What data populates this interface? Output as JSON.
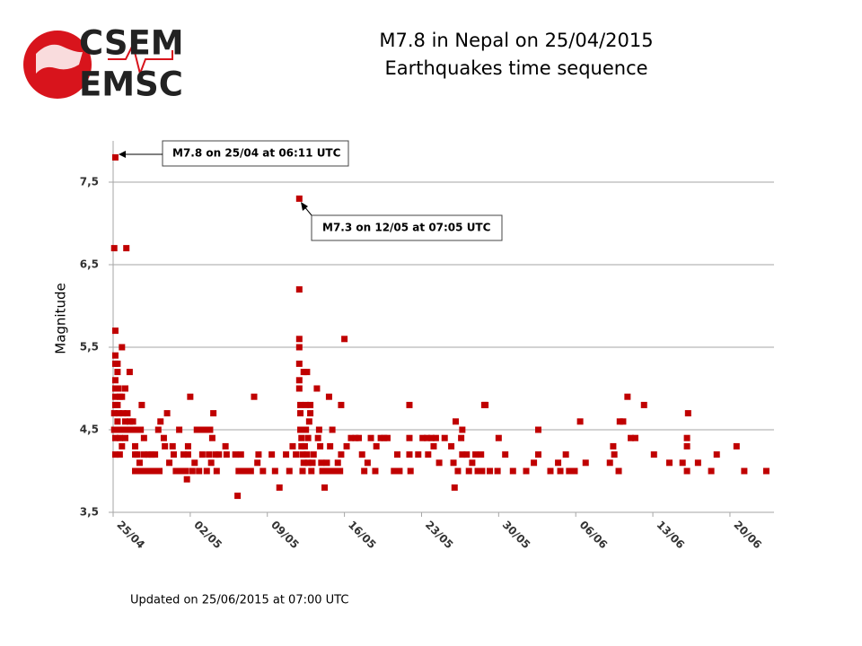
{
  "logo": {
    "line1": "CSEM",
    "line2": "EMSC"
  },
  "chart_data": {
    "type": "scatter",
    "title": "M7.8 in Nepal on 25/04/2015",
    "subtitle": "Earthquakes time sequence",
    "y_label": "Magnitude",
    "footer": "Updated on 25/06/2015  at 07:00 UTC",
    "annotations": [
      "M7.8 on 25/04 at 06:11 UTC",
      "M7.3 on 12/05 at 07:05 UTC"
    ],
    "color": "#c00000",
    "grid": true,
    "xlim": [
      0,
      60
    ],
    "xticks": [
      {
        "value": 0,
        "label": "25/04"
      },
      {
        "value": 7,
        "label": "02/05"
      },
      {
        "value": 14,
        "label": "09/05"
      },
      {
        "value": 21,
        "label": "16/05"
      },
      {
        "value": 28,
        "label": "23/05"
      },
      {
        "value": 35,
        "label": "30/05"
      },
      {
        "value": 42,
        "label": "06/06"
      },
      {
        "value": 49,
        "label": "13/06"
      },
      {
        "value": 56,
        "label": "20/06"
      }
    ],
    "ylim": [
      3.5,
      8
    ],
    "yticks": [
      {
        "value": 3.5,
        "label": "3,5"
      },
      {
        "value": 4.5,
        "label": "4,5"
      },
      {
        "value": 5.5,
        "label": "5,5"
      },
      {
        "value": 6.5,
        "label": "6,5"
      },
      {
        "value": 7.5,
        "label": "7,5"
      }
    ],
    "x": [
      0.2,
      0.1,
      0.2,
      0.2,
      0.2,
      0.2,
      0.2,
      0.2,
      0.2,
      0.1,
      0.1,
      0.2,
      0.2,
      0.4,
      0.4,
      0.5,
      0.6,
      0.4,
      0.5,
      0.4,
      0.6,
      0.6,
      0.8,
      0.6,
      0.8,
      0.8,
      0.9,
      1.1,
      1.2,
      1.1,
      1.1,
      1.1,
      1.3,
      1.5,
      1.5,
      1.5,
      1.8,
      2.0,
      2.0,
      2.0,
      2.0,
      2.2,
      2.4,
      2.4,
      2.5,
      2.6,
      2.8,
      2.8,
      2.9,
      3.2,
      3.3,
      3.5,
      3.6,
      3.8,
      3.9,
      4.1,
      4.2,
      4.3,
      4.6,
      4.7,
      4.9,
      5.1,
      5.4,
      5.5,
      5.7,
      6.0,
      6.1,
      6.4,
      6.6,
      6.7,
      6.8,
      6.8,
      7.0,
      7.2,
      7.4,
      7.6,
      7.8,
      8.1,
      8.1,
      8.4,
      8.5,
      8.7,
      8.8,
      8.9,
      9.0,
      9.1,
      9.3,
      9.4,
      9.6,
      10.2,
      10.3,
      11.1,
      11.3,
      11.4,
      11.6,
      11.8,
      12.3,
      12.5,
      12.8,
      13.1,
      13.2,
      13.6,
      14.4,
      14.7,
      15.1,
      15.7,
      16.0,
      16.3,
      16.6,
      16.9,
      16.9,
      16.9,
      16.9,
      16.9,
      16.9,
      16.9,
      17.0,
      17.0,
      17.0,
      17.1,
      17.1,
      17.2,
      17.3,
      17.2,
      17.3,
      17.6,
      17.5,
      17.9,
      17.9,
      17.8,
      17.5,
      17.7,
      17.4,
      17.6,
      17.7,
      18.0,
      18.1,
      18.2,
      18.5,
      18.6,
      18.7,
      18.8,
      18.9,
      19.0,
      19.2,
      19.4,
      19.4,
      19.6,
      19.7,
      19.9,
      19.9,
      20.2,
      20.4,
      20.6,
      20.7,
      20.7,
      21.0,
      21.2,
      21.6,
      22.0,
      22.3,
      22.6,
      22.8,
      23.1,
      23.4,
      23.8,
      23.9,
      24.3,
      24.6,
      24.9,
      25.5,
      25.8,
      26.0,
      26.9,
      26.9,
      26.9,
      27.0,
      27.7,
      28.1,
      28.5,
      28.6,
      28.9,
      29.1,
      29.3,
      29.6,
      30.1,
      30.7,
      30.9,
      31.0,
      31.1,
      31.3,
      31.6,
      31.7,
      31.7,
      32.1,
      32.3,
      32.6,
      32.9,
      33.1,
      33.4,
      33.5,
      33.7,
      33.8,
      34.2,
      34.9,
      35.0,
      35.6,
      36.3,
      37.5,
      38.2,
      38.6,
      38.6,
      39.7,
      40.4,
      40.6,
      41.1,
      41.4,
      41.9,
      42.4,
      42.9,
      45.1,
      45.4,
      45.5,
      45.9,
      46.0,
      46.3,
      46.7,
      47.0,
      47.4,
      48.2,
      49.1,
      50.5,
      51.7,
      52.2,
      52.1,
      52.1,
      52.1,
      53.1,
      54.3,
      54.8,
      56.6,
      57.3,
      59.3
    ],
    "values": [
      7.8,
      6.7,
      5.7,
      5.4,
      5.3,
      5.1,
      5.0,
      4.9,
      4.8,
      4.7,
      4.5,
      4.4,
      4.2,
      5.3,
      5.2,
      5.0,
      4.9,
      4.8,
      4.7,
      4.6,
      4.5,
      4.4,
      4.3,
      4.2,
      5.5,
      4.9,
      4.7,
      5.0,
      6.7,
      4.6,
      4.5,
      4.4,
      4.7,
      5.2,
      4.6,
      4.5,
      4.6,
      4.5,
      4.3,
      4.2,
      4.0,
      4.2,
      4.0,
      4.1,
      4.5,
      4.8,
      4.4,
      4.2,
      4.0,
      4.2,
      4.0,
      4.2,
      4.0,
      4.2,
      4.0,
      4.5,
      4.0,
      4.6,
      4.4,
      4.3,
      4.7,
      4.1,
      4.3,
      4.2,
      4.0,
      4.5,
      4.0,
      4.2,
      4.0,
      3.9,
      4.3,
      4.2,
      4.9,
      4.0,
      4.1,
      4.5,
      4.0,
      4.5,
      4.2,
      4.5,
      4.0,
      4.2,
      4.5,
      4.1,
      4.4,
      4.7,
      4.2,
      4.0,
      4.2,
      4.3,
      4.2,
      4.2,
      3.7,
      4.0,
      4.2,
      4.0,
      4.0,
      4.0,
      4.9,
      4.1,
      4.2,
      4.0,
      4.2,
      4.0,
      3.8,
      4.2,
      4.0,
      4.3,
      4.2,
      7.3,
      6.2,
      5.6,
      5.5,
      5.3,
      5.1,
      5.0,
      4.8,
      4.7,
      4.5,
      4.4,
      4.3,
      4.2,
      4.1,
      4.0,
      5.2,
      5.2,
      4.8,
      4.8,
      4.7,
      4.6,
      4.5,
      4.4,
      4.3,
      4.2,
      4.1,
      4.0,
      4.1,
      4.2,
      5.0,
      4.4,
      4.5,
      4.3,
      4.1,
      4.0,
      3.8,
      4.0,
      4.1,
      4.9,
      4.3,
      4.0,
      4.5,
      4.0,
      4.1,
      4.0,
      4.8,
      4.2,
      5.6,
      4.3,
      4.4,
      4.4,
      4.4,
      4.2,
      4.0,
      4.1,
      4.4,
      4.0,
      4.3,
      4.4,
      4.4,
      4.4,
      4.0,
      4.2,
      4.0,
      4.8,
      4.4,
      4.2,
      4.0,
      4.2,
      4.4,
      4.4,
      4.2,
      4.4,
      4.3,
      4.4,
      4.1,
      4.4,
      4.3,
      4.1,
      3.8,
      4.6,
      4.0,
      4.4,
      4.5,
      4.2,
      4.2,
      4.0,
      4.1,
      4.2,
      4.0,
      4.2,
      4.0,
      4.8,
      4.8,
      4.0,
      4.0,
      4.4,
      4.2,
      4.0,
      4.0,
      4.1,
      4.5,
      4.2,
      4.0,
      4.1,
      4.0,
      4.2,
      4.0,
      4.0,
      4.6,
      4.1,
      4.1,
      4.3,
      4.2,
      4.0,
      4.6,
      4.6,
      4.9,
      4.4,
      4.4,
      4.8,
      4.2,
      4.1,
      4.1,
      4.7,
      4.4,
      4.3,
      4.0,
      4.1,
      4.0,
      4.2,
      4.3,
      4.0,
      4.0
    ]
  }
}
